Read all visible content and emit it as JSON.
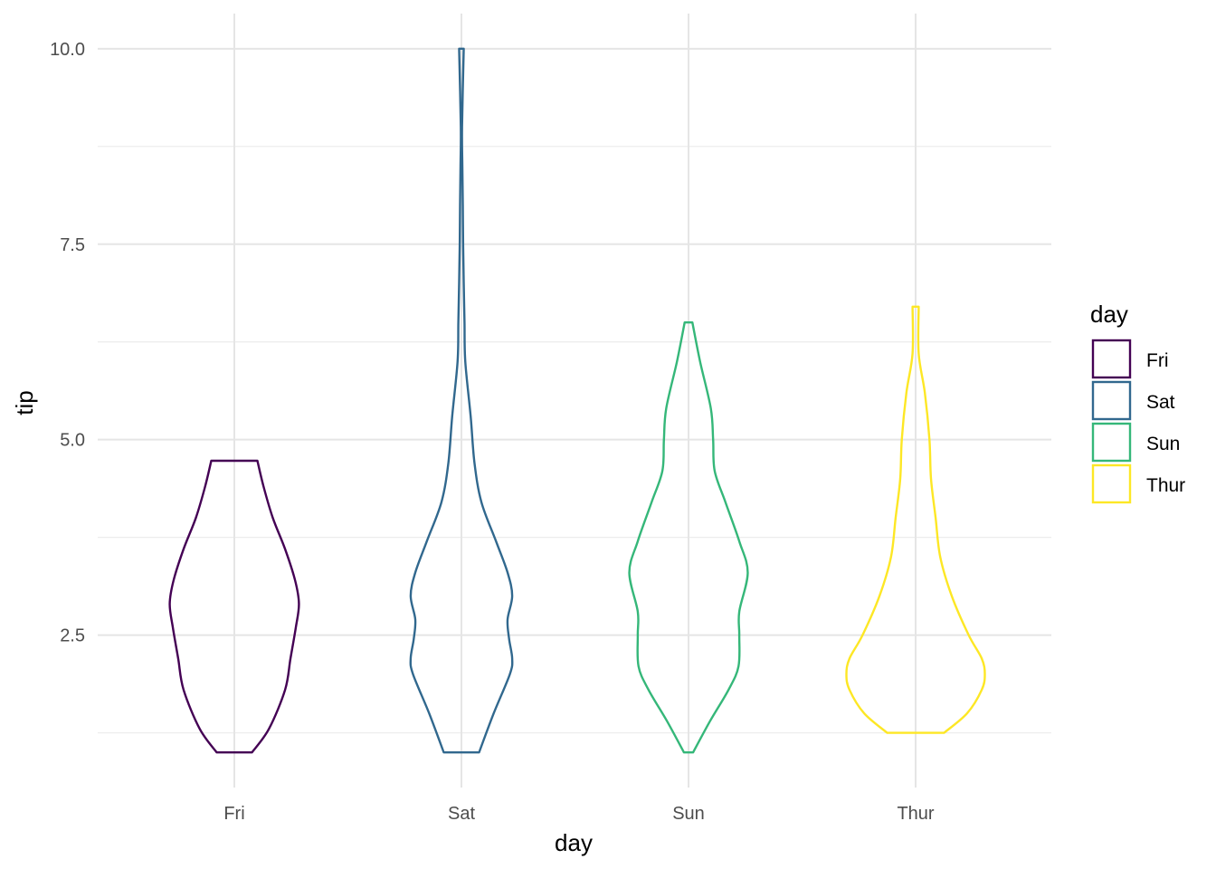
{
  "chart_data": {
    "type": "violin",
    "xlabel": "day",
    "ylabel": "tip",
    "categories": [
      "Fri",
      "Sat",
      "Sun",
      "Thur"
    ],
    "ylim": [
      0.55,
      10.45
    ],
    "yticks": [
      2.5,
      5.0,
      7.5,
      10.0
    ],
    "ytick_labels": [
      "2.5",
      "5.0",
      "7.5",
      "10.0"
    ],
    "y_minor_ticks": [
      1.25,
      3.75,
      6.25,
      8.75
    ],
    "grid": true,
    "legend": {
      "title": "day",
      "placement": "right",
      "items": [
        "Fri",
        "Sat",
        "Sun",
        "Thur"
      ]
    },
    "colors": {
      "Fri": "#440154",
      "Sat": "#31688e",
      "Sun": "#35b779",
      "Thur": "#fde725"
    },
    "series": [
      {
        "category": "Fri",
        "range": [
          1.0,
          4.73
        ],
        "profile": [
          [
            1.0,
            0.23
          ],
          [
            1.3,
            0.45
          ],
          [
            1.8,
            0.66
          ],
          [
            2.2,
            0.73
          ],
          [
            2.6,
            0.8
          ],
          [
            2.9,
            0.84
          ],
          [
            3.2,
            0.79
          ],
          [
            3.6,
            0.66
          ],
          [
            4.0,
            0.5
          ],
          [
            4.4,
            0.38
          ],
          [
            4.73,
            0.3
          ]
        ]
      },
      {
        "category": "Sat",
        "range": [
          1.0,
          10.0
        ],
        "profile": [
          [
            1.0,
            0.23
          ],
          [
            1.5,
            0.42
          ],
          [
            2.0,
            0.63
          ],
          [
            2.2,
            0.66
          ],
          [
            2.45,
            0.62
          ],
          [
            2.7,
            0.6
          ],
          [
            3.0,
            0.66
          ],
          [
            3.3,
            0.6
          ],
          [
            3.7,
            0.45
          ],
          [
            4.2,
            0.26
          ],
          [
            4.7,
            0.17
          ],
          [
            5.3,
            0.12
          ],
          [
            6.0,
            0.05
          ],
          [
            6.5,
            0.04
          ],
          [
            7.0,
            0.03
          ],
          [
            7.5,
            0.022
          ],
          [
            8.0,
            0.018
          ],
          [
            8.5,
            0.012
          ],
          [
            9.0,
            0.008
          ],
          [
            10.0,
            0.03
          ]
        ]
      },
      {
        "category": "Sun",
        "range": [
          1.0,
          6.5
        ],
        "profile": [
          [
            1.0,
            0.06
          ],
          [
            1.4,
            0.28
          ],
          [
            1.8,
            0.52
          ],
          [
            2.1,
            0.65
          ],
          [
            2.5,
            0.66
          ],
          [
            2.8,
            0.66
          ],
          [
            3.3,
            0.77
          ],
          [
            3.7,
            0.66
          ],
          [
            4.2,
            0.48
          ],
          [
            4.6,
            0.34
          ],
          [
            5.0,
            0.32
          ],
          [
            5.4,
            0.29
          ],
          [
            6.0,
            0.15
          ],
          [
            6.5,
            0.05
          ]
        ]
      },
      {
        "category": "Thur",
        "range": [
          1.25,
          6.7
        ],
        "profile": [
          [
            1.25,
            0.37
          ],
          [
            1.5,
            0.67
          ],
          [
            1.8,
            0.86
          ],
          [
            2.0,
            0.9
          ],
          [
            2.2,
            0.86
          ],
          [
            2.5,
            0.69
          ],
          [
            3.0,
            0.47
          ],
          [
            3.5,
            0.32
          ],
          [
            4.0,
            0.26
          ],
          [
            4.5,
            0.2
          ],
          [
            5.0,
            0.18
          ],
          [
            5.6,
            0.12
          ],
          [
            6.1,
            0.04
          ],
          [
            6.7,
            0.04
          ]
        ]
      }
    ]
  }
}
